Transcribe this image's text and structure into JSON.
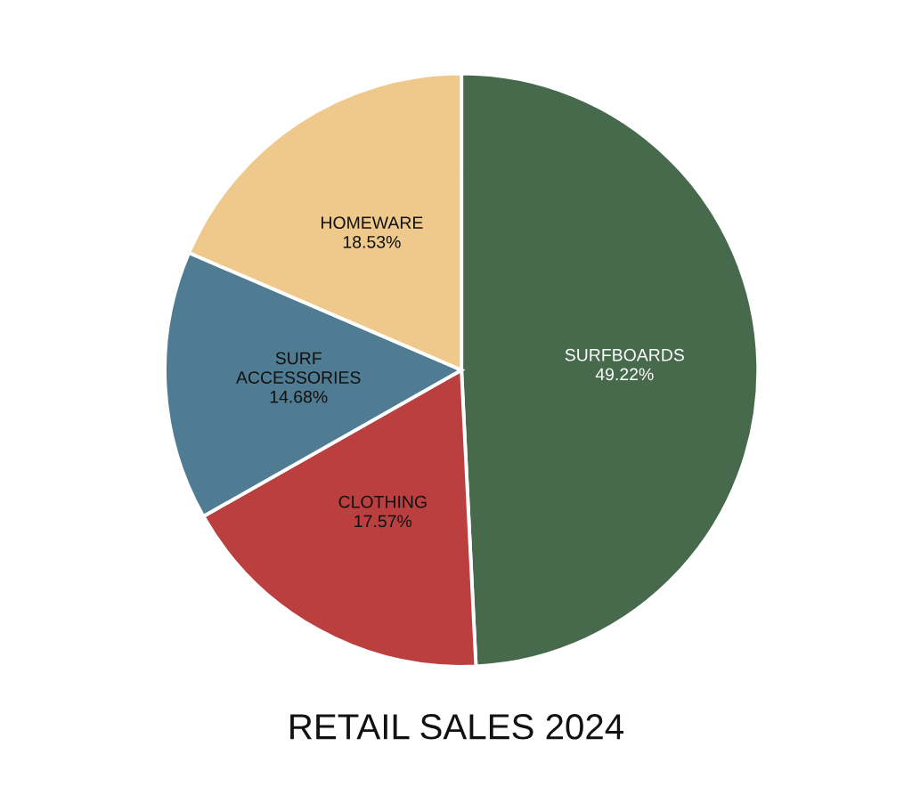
{
  "chart_data": {
    "type": "pie",
    "title": "RETAIL SALES 2024",
    "categories": [
      "SURFBOARDS",
      "CLOTHING",
      "SURF\nACCESSORIES",
      "HOMEWARE"
    ],
    "values": [
      49.22,
      17.57,
      14.68,
      18.53
    ],
    "value_labels": [
      "49.22%",
      "17.57%",
      "14.68%",
      "18.53%"
    ],
    "colors": [
      "#476a4d",
      "#bb3f3f",
      "#4f7c93",
      "#efc98c"
    ],
    "legend": false
  }
}
